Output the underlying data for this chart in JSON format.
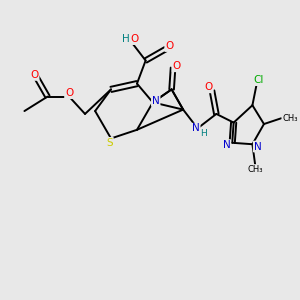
{
  "bg_color": "#e8e8e8",
  "bond_color": "#000000",
  "bond_lw": 1.4,
  "atom_colors": {
    "O": "#ff0000",
    "N": "#0000cd",
    "S": "#cccc00",
    "Cl": "#00aa00",
    "H": "#008080",
    "C": "#000000"
  },
  "font_size": 7.5,
  "figsize": [
    3.0,
    3.0
  ],
  "dpi": 100
}
